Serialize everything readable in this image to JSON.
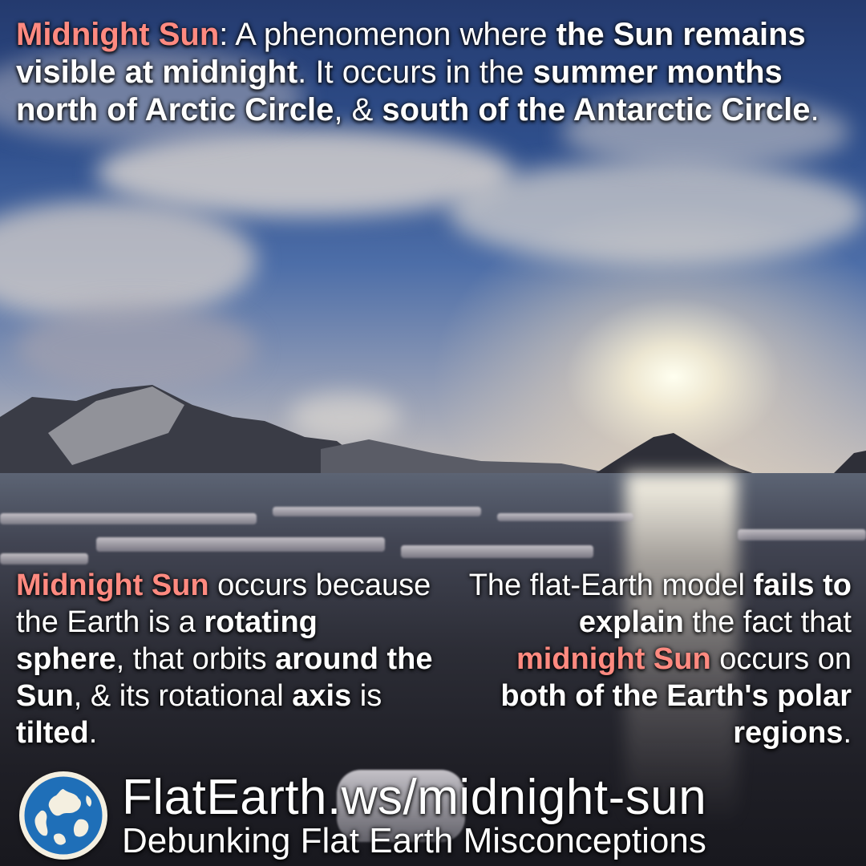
{
  "top_caption": {
    "title": "Midnight Sun",
    "t1": ": A phenomenon where ",
    "b1": "the Sun remains visible at midnight",
    "t2": ". It occurs in the ",
    "b2": "summer months north of Arctic Circle",
    "t3": ", & ",
    "b3": "south of the Antarctic Circle",
    "t4": "."
  },
  "left_caption": {
    "title": "Midnight Sun",
    "t1": " occurs because the Earth is a ",
    "b1": "rotating sphere",
    "t2": ", that orbits ",
    "b2": "around the Sun",
    "t3": ", & its rotational ",
    "b3": "axis",
    "t4": " is ",
    "b4": "tilted",
    "t5": "."
  },
  "right_caption": {
    "t1": "The flat-Earth model ",
    "b1": "fails to explain",
    "t2": " the fact that ",
    "hl": "midnight Sun",
    "t3": " occurs on ",
    "b2": "both of the Earth's polar regions",
    "t4": "."
  },
  "footer": {
    "url": "FlatEarth.ws/midnight-sun",
    "tagline": "Debunking Flat Earth Misconceptions",
    "logo_icon": "flat-earth-globe-icon"
  },
  "colors": {
    "highlight": "#ff8a80",
    "text": "#ffffff",
    "logo_ocean": "#1f6fb8",
    "logo_bg": "#f4efe0"
  }
}
